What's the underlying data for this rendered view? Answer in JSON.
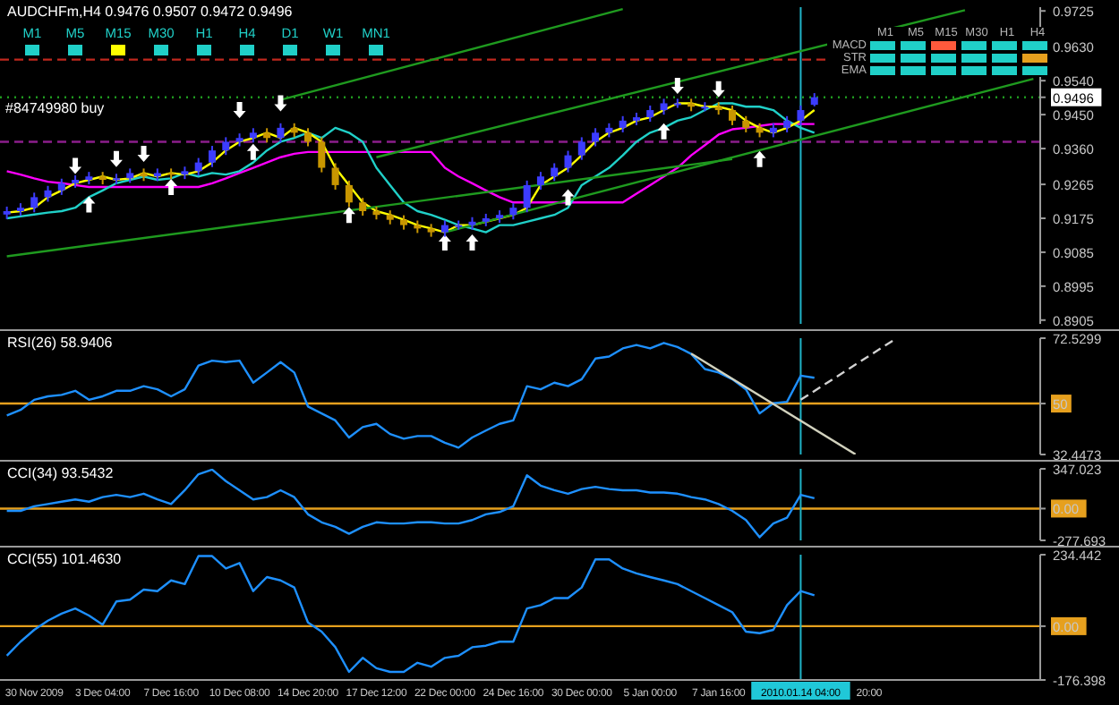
{
  "chart_data": [
    {
      "type": "candlestick",
      "title": "AUDCHFm,H4 0.9476 0.9507 0.9472 0.9496",
      "tick_labels": "y",
      "categories": [
        null,
        null,
        "30 Nov 2009",
        null,
        null,
        null,
        null,
        "3 Dec 04:00",
        null,
        null,
        null,
        null,
        "7 Dec 16:00",
        null,
        null,
        null,
        null,
        "10 Dec 08:00",
        null,
        null,
        null,
        null,
        "14 Dec 20:00",
        null,
        null,
        null,
        null,
        "17 Dec 12:00",
        null,
        null,
        null,
        null,
        "22 Dec 00:00",
        null,
        null,
        null,
        null,
        "24 Dec 16:00",
        null,
        null,
        null,
        null,
        "30 Dec 00:00",
        null,
        null,
        null,
        null,
        "5 Jan 00:00",
        null,
        null,
        null,
        null,
        "7 Jan 16:00",
        null,
        null,
        null,
        null,
        null,
        "2010.01.14 04:00",
        null,
        null,
        null,
        null,
        "20:00",
        null,
        null,
        null,
        null,
        null,
        null,
        null,
        null,
        null,
        null,
        null,
        null
      ],
      "ohlc": [
        [
          0.9185,
          0.9206,
          0.9173,
          0.9194
        ],
        [
          0.9194,
          0.9215,
          0.9182,
          0.9203
        ],
        [
          0.9203,
          0.9243,
          0.9191,
          0.9231
        ],
        [
          0.9231,
          0.9261,
          0.9219,
          0.9249
        ],
        [
          0.9249,
          0.928,
          0.9237,
          0.9268
        ],
        [
          0.9268,
          0.9289,
          0.9256,
          0.9277
        ],
        [
          0.9277,
          0.9298,
          0.9265,
          0.9286
        ],
        [
          0.9286,
          0.9298,
          0.9265,
          0.9277
        ],
        [
          0.9277,
          0.9293,
          0.9265,
          0.9281
        ],
        [
          0.9281,
          0.9307,
          0.9269,
          0.9295
        ],
        [
          0.9295,
          0.9307,
          0.9274,
          0.9286
        ],
        [
          0.9286,
          0.9307,
          0.9274,
          0.9295
        ],
        [
          0.9295,
          0.9307,
          0.9279,
          0.9291
        ],
        [
          0.9291,
          0.9312,
          0.9279,
          0.93
        ],
        [
          0.93,
          0.9335,
          0.9288,
          0.9323
        ],
        [
          0.9323,
          0.9367,
          0.9311,
          0.9355
        ],
        [
          0.9355,
          0.939,
          0.9343,
          0.9378
        ],
        [
          0.9378,
          0.94,
          0.9366,
          0.9388
        ],
        [
          0.9388,
          0.9414,
          0.9376,
          0.9402
        ],
        [
          0.9402,
          0.9414,
          0.9376,
          0.9388
        ],
        [
          0.9388,
          0.9427,
          0.9376,
          0.9415
        ],
        [
          0.9415,
          0.9427,
          0.939,
          0.9402
        ],
        [
          0.9402,
          0.9414,
          0.9366,
          0.9378
        ],
        [
          0.9378,
          0.939,
          0.9297,
          0.9309
        ],
        [
          0.9309,
          0.9321,
          0.9251,
          0.9263
        ],
        [
          0.9263,
          0.9275,
          0.9205,
          0.9217
        ],
        [
          0.9217,
          0.9229,
          0.9182,
          0.9194
        ],
        [
          0.9194,
          0.9206,
          0.9172,
          0.9184
        ],
        [
          0.9184,
          0.9196,
          0.9159,
          0.9171
        ],
        [
          0.9171,
          0.9183,
          0.9145,
          0.9157
        ],
        [
          0.9157,
          0.9169,
          0.9136,
          0.9148
        ],
        [
          0.9148,
          0.916,
          0.9126,
          0.9138
        ],
        [
          0.9138,
          0.9169,
          0.9126,
          0.9157
        ],
        [
          0.9157,
          0.9169,
          0.9145,
          0.9157
        ],
        [
          0.9157,
          0.9178,
          0.9145,
          0.9166
        ],
        [
          0.9166,
          0.9187,
          0.9154,
          0.9175
        ],
        [
          0.9175,
          0.9196,
          0.9163,
          0.9184
        ],
        [
          0.9184,
          0.9215,
          0.9172,
          0.9203
        ],
        [
          0.9203,
          0.9275,
          0.9191,
          0.9263
        ],
        [
          0.9263,
          0.9298,
          0.9251,
          0.9286
        ],
        [
          0.9286,
          0.9321,
          0.9274,
          0.9309
        ],
        [
          0.9309,
          0.9354,
          0.9297,
          0.9342
        ],
        [
          0.9342,
          0.939,
          0.933,
          0.9378
        ],
        [
          0.9378,
          0.9414,
          0.9366,
          0.9402
        ],
        [
          0.9402,
          0.9427,
          0.939,
          0.9415
        ],
        [
          0.9415,
          0.9446,
          0.9403,
          0.9434
        ],
        [
          0.9434,
          0.9455,
          0.9422,
          0.9443
        ],
        [
          0.9443,
          0.9474,
          0.9431,
          0.9462
        ],
        [
          0.9462,
          0.9492,
          0.945,
          0.948
        ],
        [
          0.948,
          0.9492,
          0.9468,
          0.948
        ],
        [
          0.948,
          0.9492,
          0.9459,
          0.9471
        ],
        [
          0.9471,
          0.9483,
          0.9459,
          0.9471
        ],
        [
          0.9471,
          0.9483,
          0.945,
          0.9462
        ],
        [
          0.9462,
          0.9474,
          0.9422,
          0.9434
        ],
        [
          0.9434,
          0.9446,
          0.9403,
          0.9415
        ],
        [
          0.9415,
          0.9427,
          0.939,
          0.9402
        ],
        [
          0.9402,
          0.9427,
          0.939,
          0.9415
        ],
        [
          0.9415,
          0.9446,
          0.9403,
          0.9434
        ],
        [
          0.9434,
          0.9474,
          0.9422,
          0.9462
        ],
        [
          0.9476,
          0.9507,
          0.9472,
          0.9496
        ],
        null,
        null,
        null,
        null,
        null,
        null,
        null,
        null,
        null,
        null,
        null,
        null,
        null,
        null,
        null,
        null
      ],
      "colors": [
        "#3c3cff",
        "#3c3cff",
        "#3c3cff",
        "#3c3cff",
        "#3c3cff",
        "#3c3cff",
        "#3c3cff",
        "#c89600",
        "#3c3cff",
        "#3c3cff",
        "#c89600",
        "#3c3cff",
        "#c89600",
        "#3c3cff",
        "#3c3cff",
        "#3c3cff",
        "#3c3cff",
        "#3c3cff",
        "#3c3cff",
        "#c89600",
        "#3c3cff",
        "#c89600",
        "#c89600",
        "#c89600",
        "#c89600",
        "#c89600",
        "#c89600",
        "#c89600",
        "#c89600",
        "#c89600",
        "#c89600",
        "#c89600",
        "#3c3cff",
        "#3c3cff",
        "#3c3cff",
        "#3c3cff",
        "#3c3cff",
        "#3c3cff",
        "#3c3cff",
        "#3c3cff",
        "#3c3cff",
        "#3c3cff",
        "#3c3cff",
        "#3c3cff",
        "#3c3cff",
        "#3c3cff",
        "#3c3cff",
        "#3c3cff",
        "#3c3cff",
        "#3c3cff",
        "#c89600",
        "#3c3cff",
        "#c89600",
        "#c89600",
        "#c89600",
        "#c89600",
        "#3c3cff",
        "#3c3cff",
        "#3c3cff",
        "#3c3cff",
        null,
        null,
        null,
        null,
        null,
        null,
        null,
        null,
        null,
        null,
        null,
        null,
        null,
        null,
        null,
        null
      ],
      "series": [
        {
          "type": "line",
          "color": "#ff00ff",
          "values": [
            0.93,
            0.9291,
            0.9281,
            0.9272,
            0.9268,
            0.9263,
            0.9258,
            0.9258,
            0.9258,
            0.9258,
            0.9258,
            0.9258,
            0.9258,
            0.9258,
            0.9258,
            0.9268,
            0.9281,
            0.9295,
            0.9309,
            0.9323,
            0.9337,
            0.9346,
            0.9351,
            0.9351,
            0.9351,
            0.9351,
            0.9351,
            0.9351,
            0.9351,
            0.9351,
            0.9351,
            0.9351,
            0.9309,
            0.9286,
            0.9268,
            0.9249,
            0.9231,
            0.9217,
            0.9217,
            0.9217,
            0.9217,
            0.9217,
            0.9217,
            0.9217,
            0.9217,
            0.9217,
            0.924,
            0.9263,
            0.9286,
            0.9309,
            0.9342,
            0.9369,
            0.9397,
            0.9411,
            0.9415,
            0.942,
            0.9425,
            0.9425,
            0.9425,
            0.9425,
            null,
            null,
            null,
            null,
            null,
            null,
            null,
            null,
            null,
            null,
            null,
            null,
            null,
            null,
            null,
            null
          ]
        },
        {
          "type": "line",
          "color": "#20d0c8",
          "values": [
            0.9175,
            0.918,
            0.9185,
            0.919,
            0.9194,
            0.9203,
            0.9231,
            0.9249,
            0.9268,
            0.9277,
            0.9286,
            0.9277,
            0.9281,
            0.9295,
            0.9286,
            0.9295,
            0.9291,
            0.93,
            0.9323,
            0.9355,
            0.9378,
            0.9388,
            0.9402,
            0.9388,
            0.9415,
            0.9402,
            0.9378,
            0.9309,
            0.9263,
            0.9217,
            0.9194,
            0.9184,
            0.9171,
            0.9157,
            0.9148,
            0.9138,
            0.9157,
            0.9157,
            0.9166,
            0.9175,
            0.9184,
            0.9203,
            0.9263,
            0.9286,
            0.9309,
            0.9342,
            0.9378,
            0.9402,
            0.9415,
            0.9434,
            0.9443,
            0.9462,
            0.948,
            0.948,
            0.9471,
            0.9471,
            0.9462,
            0.9434,
            0.9415,
            0.9402,
            null,
            null,
            null,
            null,
            null,
            null,
            null,
            null,
            null,
            null,
            null,
            null,
            null,
            null,
            null,
            null
          ]
        },
        {
          "type": "line",
          "color": "#ffff00",
          "values": [
            0.919,
            0.9194,
            0.9203,
            0.9231,
            0.9249,
            0.9268,
            0.9277,
            0.9286,
            0.9277,
            0.9281,
            0.9295,
            0.9286,
            0.9295,
            0.9291,
            0.93,
            0.9323,
            0.9355,
            0.9378,
            0.9388,
            0.9402,
            0.9388,
            0.9415,
            0.9402,
            0.9378,
            0.9309,
            0.9263,
            0.9217,
            0.9194,
            0.9184,
            0.9171,
            0.9157,
            0.9148,
            0.9138,
            0.9157,
            0.9157,
            0.9166,
            0.9175,
            0.9184,
            0.9203,
            0.9263,
            0.9286,
            0.9309,
            0.9342,
            0.9378,
            0.9402,
            0.9415,
            0.9434,
            0.9443,
            0.9462,
            0.948,
            0.948,
            0.9471,
            0.9471,
            0.9462,
            0.9434,
            0.9415,
            0.9402,
            0.9415,
            0.9434,
            0.9462,
            null,
            null,
            null,
            null,
            null,
            null,
            null,
            null,
            null,
            null,
            null,
            null,
            null,
            null,
            null,
            null
          ]
        },
        {
          "type": "line",
          "color": "#1f9a1f",
          "values": [
            0.9074,
            null,
            null,
            null,
            null,
            null,
            null,
            null,
            null,
            null,
            null,
            null,
            null,
            null,
            null,
            null,
            null,
            null,
            null,
            null,
            null,
            null,
            null,
            null,
            null,
            null,
            null,
            null,
            null,
            null,
            null,
            null,
            null,
            null,
            null,
            null,
            null,
            null,
            null,
            null,
            null,
            null,
            null,
            null,
            null,
            null,
            null,
            null,
            null,
            null,
            null,
            null,
            null,
            0.9332,
            null,
            null,
            null,
            null,
            null,
            null,
            null,
            null,
            null,
            null,
            null,
            null,
            null,
            null,
            null,
            null,
            null,
            null,
            null,
            null,
            null,
            null
          ]
        },
        {
          "type": "line",
          "color": "#1f9a1f",
          "values": [
            null,
            null,
            null,
            null,
            null,
            null,
            null,
            null,
            null,
            null,
            null,
            null,
            null,
            null,
            null,
            null,
            null,
            null,
            null,
            null,
            null,
            null,
            null,
            null,
            null,
            null,
            null,
            null,
            null,
            null,
            null,
            null,
            0.9138,
            null,
            null,
            null,
            null,
            null,
            null,
            null,
            null,
            null,
            null,
            null,
            null,
            null,
            null,
            null,
            null,
            null,
            null,
            null,
            null,
            null,
            null,
            null,
            null,
            null,
            null,
            null,
            null,
            null,
            null,
            null,
            null,
            null,
            null,
            null,
            null,
            null,
            null,
            null,
            null,
            null,
            null,
            0.9545
          ]
        },
        {
          "type": "line",
          "color": "#1f9a1f",
          "values": [
            null,
            null,
            null,
            null,
            null,
            null,
            null,
            null,
            null,
            null,
            null,
            null,
            null,
            null,
            null,
            null,
            null,
            null,
            null,
            null,
            null,
            null,
            null,
            null,
            null,
            null,
            null,
            0.9337,
            null,
            null,
            null,
            null,
            null,
            null,
            null,
            null,
            null,
            null,
            null,
            null,
            null,
            null,
            null,
            null,
            null,
            null,
            null,
            null,
            null,
            null,
            null,
            null,
            null,
            null,
            null,
            null,
            null,
            null,
            null,
            null,
            null,
            null,
            null,
            null,
            null,
            null,
            null,
            null,
            null,
            null,
            0.9727,
            null,
            null,
            null,
            null,
            null
          ]
        },
        {
          "type": "line",
          "color": "#1f9a1f",
          "values": [
            null,
            null,
            null,
            null,
            null,
            null,
            null,
            null,
            null,
            null,
            null,
            null,
            null,
            null,
            null,
            null,
            null,
            null,
            null,
            null,
            0.9489,
            null,
            null,
            null,
            null,
            null,
            null,
            null,
            null,
            null,
            null,
            null,
            null,
            null,
            null,
            null,
            null,
            null,
            null,
            null,
            null,
            null,
            null,
            null,
            null,
            0.973,
            null,
            null,
            null,
            null,
            null,
            null,
            null,
            null,
            null,
            null,
            null,
            null,
            null,
            null,
            null,
            null,
            null,
            null,
            null,
            null,
            null,
            null,
            null,
            null,
            null,
            null,
            null,
            null,
            null,
            null
          ]
        },
        {
          "type": "scatter",
          "color": "#ffffff",
          "values": [
            null,
            null,
            null,
            null,
            null,
            null,
            0.9212,
            null,
            null,
            null,
            null,
            null,
            0.9258,
            null,
            null,
            null,
            null,
            null,
            0.9351,
            null,
            null,
            null,
            null,
            null,
            null,
            0.9184,
            null,
            null,
            null,
            null,
            null,
            null,
            0.9111,
            null,
            0.9111,
            null,
            null,
            null,
            null,
            null,
            null,
            0.9231,
            null,
            null,
            null,
            null,
            null,
            null,
            0.9406,
            null,
            null,
            null,
            null,
            null,
            null,
            0.9332,
            null,
            null,
            null,
            null,
            null,
            null,
            null,
            null,
            null,
            null,
            null,
            null,
            null,
            null,
            null,
            null,
            null,
            null,
            null,
            null
          ]
        },
        {
          "type": "scatter",
          "color": "#ffffff",
          "values": [
            null,
            null,
            null,
            null,
            null,
            0.9314,
            null,
            null,
            0.9332,
            null,
            0.9346,
            null,
            null,
            null,
            null,
            null,
            null,
            0.9462,
            null,
            null,
            0.948,
            null,
            null,
            null,
            null,
            null,
            null,
            null,
            null,
            null,
            null,
            null,
            null,
            null,
            null,
            null,
            null,
            null,
            null,
            null,
            null,
            null,
            null,
            null,
            null,
            null,
            null,
            null,
            null,
            0.9526,
            null,
            null,
            0.9517,
            null,
            null,
            null,
            null,
            null,
            null,
            null,
            null,
            null,
            null,
            null,
            null,
            null,
            null,
            null,
            null,
            null,
            null,
            null,
            null,
            null,
            null,
            null
          ]
        }
      ],
      "ylim": [
        0.8895,
        0.9735
      ],
      "yticks": [
        {
          "value": 0.9725,
          "label": "0.9725"
        },
        {
          "value": 0.963,
          "label": "0.9630"
        },
        {
          "value": 0.954,
          "label": "0.9540"
        },
        0.9496,
        {
          "value": 0.945,
          "label": "0.9450"
        },
        {
          "value": 0.936,
          "label": "0.9360"
        },
        0.9265,
        0.9175,
        0.9085,
        0.8995,
        0.8905
      ],
      "ref_lines": [
        {
          "axis": "y",
          "value": 0.9596,
          "color": "#c0281e",
          "line_style": "dashed"
        },
        {
          "axis": "y",
          "value": 0.9378,
          "color": "#8c1e8c",
          "line_style": "dashed"
        },
        {
          "axis": "y",
          "value": 0.9496,
          "label": "#84749980 buy",
          "color": "#1f9a1f",
          "line_style": "dotted"
        },
        {
          "axis": "x",
          "value": "2010.01.14 04:00",
          "color": "#20b4c8"
        }
      ],
      "annotations": [
        "M1 M5 M15 M30 H1 H4 D1 W1 MN1",
        "M1 M5 M15 M30 H1 H4",
        "MACD",
        "STR",
        "EMA"
      ]
    },
    {
      "type": "line",
      "title": "RSI(26) 58.9406",
      "tick_labels": "y",
      "categories": [
        null,
        null,
        "30 Nov 2009",
        null,
        null,
        null,
        null,
        "3 Dec 04:00",
        null,
        null,
        null,
        null,
        "7 Dec 16:00",
        null,
        null,
        null,
        null,
        "10 Dec 08:00",
        null,
        null,
        null,
        null,
        "14 Dec 20:00",
        null,
        null,
        null,
        null,
        "17 Dec 12:00",
        null,
        null,
        null,
        null,
        "22 Dec 00:00",
        null,
        null,
        null,
        null,
        "24 Dec 16:00",
        null,
        null,
        null,
        null,
        "30 Dec 00:00",
        null,
        null,
        null,
        null,
        "5 Jan 00:00",
        null,
        null,
        null,
        null,
        "7 Jan 16:00",
        null,
        null,
        null,
        null,
        null,
        "2010.01.14 04:00",
        null,
        null,
        null,
        null,
        "20:00",
        null,
        null,
        null,
        null,
        null,
        null,
        null,
        null,
        null,
        null,
        null,
        null
      ],
      "series": [
        {
          "color": "#1e90ff",
          "values": [
            45.9,
            47.8,
            51.3,
            52.5,
            53.0,
            54.4,
            51.3,
            52.5,
            54.4,
            54.4,
            56.0,
            54.9,
            52.5,
            54.9,
            63.1,
            64.8,
            64.3,
            64.8,
            57.2,
            60.7,
            64.3,
            60.7,
            49.0,
            46.6,
            44.2,
            38.3,
            41.9,
            43.0,
            39.5,
            37.9,
            38.8,
            38.8,
            36.5,
            34.8,
            38.3,
            40.7,
            43.0,
            44.2,
            56.0,
            54.9,
            57.2,
            56.0,
            58.4,
            65.5,
            66.2,
            69.0,
            70.2,
            69.0,
            70.9,
            69.5,
            67.1,
            61.9,
            60.7,
            58.4,
            54.9,
            46.6,
            50.1,
            50.6,
            59.6,
            58.9,
            null,
            null,
            null,
            null,
            null,
            null,
            null,
            null,
            null,
            null,
            null,
            null,
            null,
            null,
            null,
            null
          ]
        },
        {
          "color": "#d2d2be",
          "values": [
            null,
            null,
            null,
            null,
            null,
            null,
            null,
            null,
            null,
            null,
            null,
            null,
            null,
            null,
            null,
            null,
            null,
            null,
            null,
            null,
            null,
            null,
            null,
            null,
            null,
            null,
            null,
            null,
            null,
            null,
            null,
            null,
            null,
            null,
            null,
            null,
            null,
            null,
            null,
            null,
            null,
            null,
            null,
            null,
            null,
            null,
            null,
            null,
            null,
            null,
            67.2,
            null,
            null,
            null,
            null,
            null,
            null,
            null,
            null,
            null,
            null,
            null,
            32.5,
            null,
            null,
            null,
            null,
            null,
            null,
            null,
            null,
            null,
            null,
            null,
            null,
            null
          ]
        },
        {
          "color": "#d2d2d2",
          "line_style": "dashed",
          "values": [
            null,
            null,
            null,
            null,
            null,
            null,
            null,
            null,
            null,
            null,
            null,
            null,
            null,
            null,
            null,
            null,
            null,
            null,
            null,
            null,
            null,
            null,
            null,
            null,
            null,
            null,
            null,
            null,
            null,
            null,
            null,
            null,
            null,
            null,
            null,
            null,
            null,
            null,
            null,
            null,
            null,
            null,
            null,
            null,
            null,
            null,
            null,
            null,
            null,
            null,
            null,
            null,
            null,
            null,
            null,
            null,
            null,
            null,
            51.3,
            null,
            null,
            null,
            null,
            null,
            null,
            72.5,
            null,
            null,
            null,
            null,
            null,
            null,
            null,
            null,
            null,
            null
          ]
        }
      ],
      "ylim": [
        32.4473,
        72.5299
      ],
      "yticks": [
        72.5299,
        50,
        32.4473
      ],
      "ref_lines": [
        {
          "axis": "y",
          "value": 50,
          "color": "#e6a01e"
        },
        {
          "axis": "x",
          "value": "2010.01.14 04:00",
          "color": "#20b4c8"
        }
      ]
    },
    {
      "type": "line",
      "title": "CCI(34) 93.5432",
      "tick_labels": "y",
      "categories": [
        null,
        null,
        "30 Nov 2009",
        null,
        null,
        null,
        null,
        "3 Dec 04:00",
        null,
        null,
        null,
        null,
        "7 Dec 16:00",
        null,
        null,
        null,
        null,
        "10 Dec 08:00",
        null,
        null,
        null,
        null,
        "14 Dec 20:00",
        null,
        null,
        null,
        null,
        "17 Dec 12:00",
        null,
        null,
        null,
        null,
        "22 Dec 00:00",
        null,
        null,
        null,
        null,
        "24 Dec 16:00",
        null,
        null,
        null,
        null,
        "30 Dec 00:00",
        null,
        null,
        null,
        null,
        "5 Jan 00:00",
        null,
        null,
        null,
        null,
        "7 Jan 16:00",
        null,
        null,
        null,
        null,
        null,
        "2010.01.14 04:00",
        null,
        null,
        null,
        null,
        "20:00",
        null,
        null,
        null,
        null,
        null,
        null,
        null,
        null,
        null,
        null,
        null,
        null
      ],
      "series": [
        {
          "color": "#1e90ff",
          "values": [
            -20,
            -20,
            20,
            40,
            60,
            80,
            60,
            100,
            120,
            100,
            130,
            80,
            40,
            160,
            300,
            340,
            240,
            160,
            80,
            100,
            160,
            100,
            -50,
            -120,
            -160,
            -220,
            -160,
            -120,
            -130,
            -130,
            -120,
            -120,
            -130,
            -130,
            -100,
            -50,
            -30,
            20,
            290,
            200,
            160,
            130,
            170,
            190,
            170,
            160,
            160,
            140,
            140,
            130,
            100,
            80,
            40,
            -20,
            -100,
            -250,
            -130,
            -80,
            120,
            90,
            null,
            null,
            null,
            null,
            null,
            null,
            null,
            null,
            null,
            null,
            null,
            null,
            null,
            null,
            null,
            null
          ]
        }
      ],
      "ylim": [
        -277.693,
        347.023
      ],
      "yticks": [
        347.023,
        {
          "value": 0,
          "label": "0.00"
        },
        -277.693
      ],
      "ref_lines": [
        {
          "axis": "y",
          "value": 0,
          "color": "#e6a01e"
        },
        {
          "axis": "x",
          "value": "2010.01.14 04:00",
          "color": "#20b4c8"
        }
      ]
    },
    {
      "type": "line",
      "title": "CCI(55) 101.4630",
      "categories": [
        null,
        null,
        "30 Nov 2009",
        null,
        null,
        null,
        null,
        "3 Dec 04:00",
        null,
        null,
        null,
        null,
        "7 Dec 16:00",
        null,
        null,
        null,
        null,
        "10 Dec 08:00",
        null,
        null,
        null,
        null,
        "14 Dec 20:00",
        null,
        null,
        null,
        null,
        "17 Dec 12:00",
        null,
        null,
        null,
        null,
        "22 Dec 00:00",
        null,
        null,
        null,
        null,
        "24 Dec 16:00",
        null,
        null,
        null,
        null,
        "30 Dec 00:00",
        null,
        null,
        null,
        null,
        "5 Jan 00:00",
        null,
        null,
        null,
        null,
        "7 Jan 16:00",
        null,
        null,
        null,
        null,
        null,
        "2010.01.14 04:00",
        null,
        null,
        null,
        null,
        "20:00",
        null,
        null,
        null,
        null,
        null,
        null,
        null,
        null,
        null,
        null,
        null,
        null
      ],
      "series": [
        {
          "color": "#1e90ff",
          "values": [
            -97,
            -51,
            -12,
            18,
            41,
            58,
            35,
            5,
            81,
            87,
            120,
            115,
            150,
            138,
            230,
            230,
            189,
            207,
            115,
            161,
            150,
            127,
            12,
            -18,
            -69,
            -150,
            -104,
            -138,
            -150,
            -150,
            -120,
            -133,
            -104,
            -97,
            -69,
            -64,
            -51,
            -51,
            58,
            69,
            92,
            92,
            127,
            219,
            219,
            189,
            173,
            161,
            150,
            138,
            115,
            92,
            69,
            46,
            -18,
            -23,
            -12,
            69,
            115,
            101,
            null,
            null,
            null,
            null,
            null,
            null,
            null,
            null,
            null,
            null,
            null,
            null,
            null,
            null,
            null,
            null
          ]
        }
      ],
      "ylim": [
        -176.398,
        234.442
      ],
      "yticks": [
        234.442,
        {
          "value": 0,
          "label": "0.00"
        },
        -176.398
      ],
      "ref_lines": [
        {
          "axis": "y",
          "value": 0,
          "color": "#e6a01e"
        },
        {
          "axis": "x",
          "value": "2010.01.14 04:00",
          "color": "#20b4c8"
        }
      ]
    }
  ]
}
